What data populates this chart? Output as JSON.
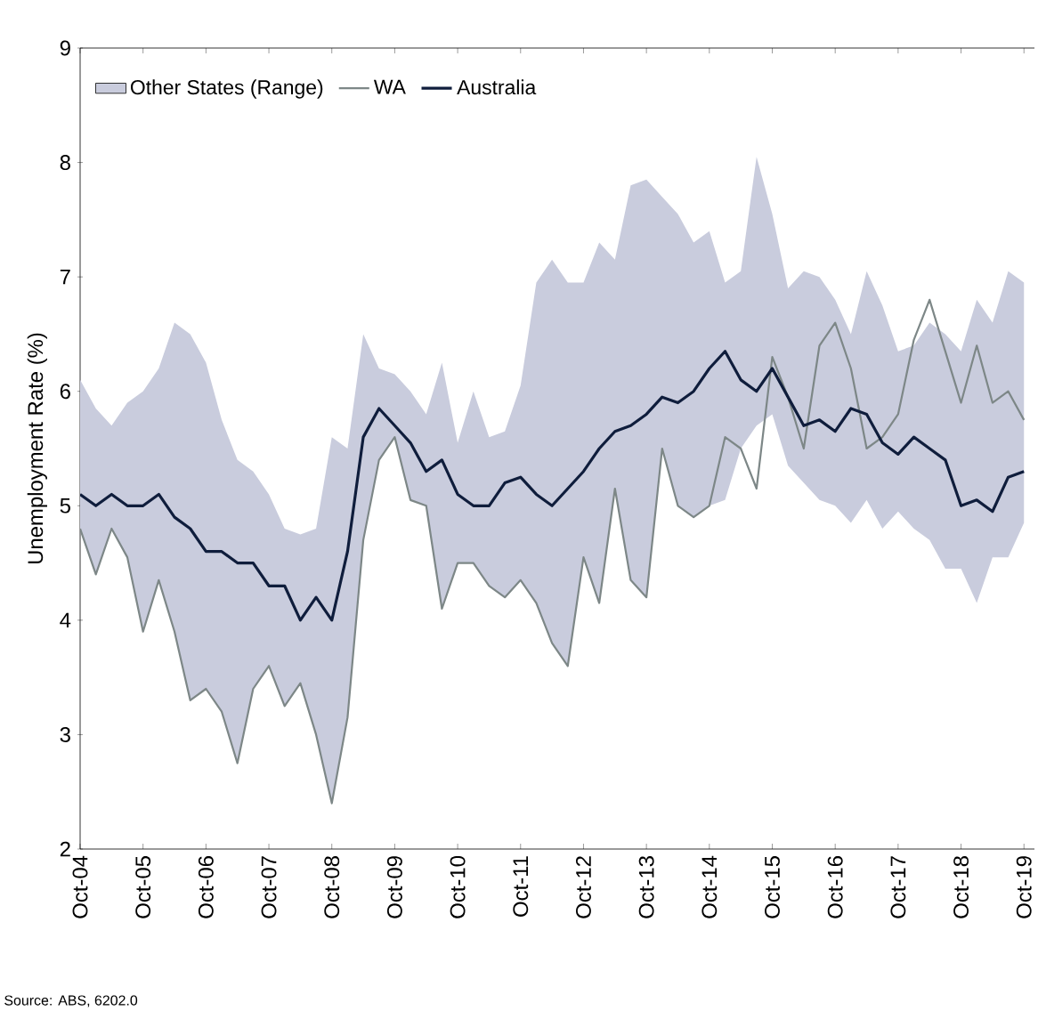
{
  "chart_data": {
    "type": "line",
    "ylabel": "Unemployment Rate (%)",
    "annotations": [
      "Source: ABS, 6202.0"
    ],
    "x": [
      "2004-10",
      "2005-01",
      "2005-04",
      "2005-07",
      "2005-10",
      "2006-01",
      "2006-04",
      "2006-07",
      "2006-10",
      "2007-01",
      "2007-04",
      "2007-07",
      "2007-10",
      "2008-01",
      "2008-04",
      "2008-07",
      "2008-10",
      "2009-01",
      "2009-04",
      "2009-07",
      "2009-10",
      "2010-01",
      "2010-04",
      "2010-07",
      "2010-10",
      "2011-01",
      "2011-04",
      "2011-07",
      "2011-10",
      "2012-01",
      "2012-04",
      "2012-07",
      "2012-10",
      "2013-01",
      "2013-04",
      "2013-07",
      "2013-10",
      "2014-01",
      "2014-04",
      "2014-07",
      "2014-10",
      "2015-01",
      "2015-04",
      "2015-07",
      "2015-10",
      "2016-01",
      "2016-04",
      "2016-07",
      "2016-10",
      "2017-01",
      "2017-04",
      "2017-07",
      "2017-10",
      "2018-01",
      "2018-04",
      "2018-07",
      "2018-10",
      "2019-01",
      "2019-04",
      "2019-07",
      "2019-10"
    ],
    "series": [
      {
        "name": "Other States (Range)",
        "type": "area",
        "color": "#c9ccdd",
        "values": [
          null,
          null,
          null,
          null,
          null,
          null,
          null,
          null,
          null,
          null,
          null,
          null,
          null,
          null,
          null,
          null,
          null,
          null,
          null,
          null,
          null,
          null,
          null,
          null,
          null,
          null,
          null,
          null,
          null,
          null,
          null,
          null,
          null,
          null,
          null,
          null,
          null,
          null,
          null,
          null,
          null,
          null,
          null,
          null,
          null,
          null,
          null,
          null,
          null,
          null,
          null,
          null,
          null,
          null,
          null,
          null,
          null,
          null,
          null,
          null,
          null
        ],
        "upper": [
          6.1,
          5.85,
          5.7,
          5.9,
          6.0,
          6.2,
          6.6,
          6.5,
          6.25,
          5.75,
          5.4,
          5.3,
          5.1,
          4.8,
          4.75,
          4.8,
          5.6,
          5.5,
          6.5,
          6.2,
          6.15,
          6.0,
          5.8,
          6.25,
          5.55,
          6.0,
          5.6,
          5.65,
          6.05,
          6.95,
          7.15,
          6.95,
          6.95,
          7.3,
          7.15,
          7.8,
          7.85,
          7.7,
          7.55,
          7.3,
          7.4,
          6.95,
          7.05,
          8.05,
          7.55,
          6.9,
          7.05,
          7.0,
          6.8,
          6.5,
          7.05,
          6.75,
          6.35,
          6.4,
          6.6,
          6.5,
          6.35,
          6.8,
          6.6,
          7.05,
          6.95
        ],
        "lower": [
          4.8,
          4.4,
          4.8,
          4.55,
          3.9,
          4.35,
          3.9,
          3.3,
          3.4,
          3.2,
          2.75,
          3.4,
          3.6,
          3.25,
          3.45,
          3.0,
          2.4,
          3.15,
          4.7,
          5.4,
          5.6,
          5.05,
          5.0,
          4.1,
          4.5,
          4.5,
          4.3,
          4.2,
          4.35,
          4.15,
          3.8,
          3.6,
          4.55,
          4.15,
          5.15,
          4.35,
          4.2,
          5.5,
          5.0,
          4.9,
          5.0,
          5.05,
          5.5,
          5.7,
          5.8,
          5.35,
          5.2,
          5.05,
          5.0,
          4.85,
          5.05,
          4.8,
          4.95,
          4.8,
          4.7,
          4.45,
          4.45,
          4.15,
          4.55,
          4.55,
          4.85
        ]
      },
      {
        "name": "WA",
        "type": "line",
        "color": "#7d8787",
        "values": [
          4.8,
          4.4,
          4.8,
          4.55,
          3.9,
          4.35,
          3.9,
          3.3,
          3.4,
          3.2,
          2.75,
          3.4,
          3.6,
          3.25,
          3.45,
          3.0,
          2.4,
          3.15,
          4.7,
          5.4,
          5.6,
          5.05,
          5.0,
          4.1,
          4.5,
          4.5,
          4.3,
          4.2,
          4.35,
          4.15,
          3.8,
          3.6,
          4.55,
          4.15,
          5.15,
          4.35,
          4.2,
          5.5,
          5.0,
          4.9,
          5.0,
          5.6,
          5.5,
          5.15,
          6.3,
          5.95,
          5.5,
          6.4,
          6.6,
          6.2,
          5.5,
          5.6,
          5.8,
          6.45,
          6.8,
          6.35,
          5.9,
          6.4,
          5.9,
          6.0,
          5.75
        ]
      },
      {
        "name": "Australia",
        "type": "line",
        "color": "#0f1d3c",
        "values": [
          5.1,
          5.0,
          5.1,
          5.0,
          5.0,
          5.1,
          4.9,
          4.8,
          4.6,
          4.6,
          4.5,
          4.5,
          4.3,
          4.3,
          4.0,
          4.2,
          4.0,
          4.6,
          5.6,
          5.85,
          5.7,
          5.55,
          5.3,
          5.4,
          5.1,
          5.0,
          5.0,
          5.2,
          5.25,
          5.1,
          5.0,
          5.15,
          5.3,
          5.5,
          5.65,
          5.7,
          5.8,
          5.95,
          5.9,
          6.0,
          6.2,
          6.35,
          6.1,
          6.0,
          6.2,
          5.95,
          5.7,
          5.75,
          5.65,
          5.85,
          5.8,
          5.55,
          5.45,
          5.6,
          5.5,
          5.4,
          5.0,
          5.05,
          4.95,
          5.25,
          5.3
        ]
      }
    ],
    "xlim": [
      "2004-10",
      "2019-12"
    ],
    "xticks": [
      {
        "value": "2004-10",
        "label": "Oct-04"
      },
      {
        "value": "2005-10",
        "label": "Oct-05"
      },
      {
        "value": "2006-10",
        "label": "Oct-06"
      },
      {
        "value": "2007-10",
        "label": "Oct-07"
      },
      {
        "value": "2008-10",
        "label": "Oct-08"
      },
      {
        "value": "2009-10",
        "label": "Oct-09"
      },
      {
        "value": "2010-10",
        "label": "Oct-10"
      },
      {
        "value": "2011-10",
        "label": "Oct-11"
      },
      {
        "value": "2012-10",
        "label": "Oct-12"
      },
      {
        "value": "2013-10",
        "label": "Oct-13"
      },
      {
        "value": "2014-10",
        "label": "Oct-14"
      },
      {
        "value": "2015-10",
        "label": "Oct-15"
      },
      {
        "value": "2016-10",
        "label": "Oct-16"
      },
      {
        "value": "2017-10",
        "label": "Oct-17"
      },
      {
        "value": "2018-10",
        "label": "Oct-18"
      },
      {
        "value": "2019-10",
        "label": "Oct-19"
      }
    ],
    "ylim": [
      2,
      9
    ],
    "yticks": [
      2,
      3,
      4,
      5,
      6,
      7,
      8,
      9
    ],
    "legend": "top left",
    "grid": false
  }
}
